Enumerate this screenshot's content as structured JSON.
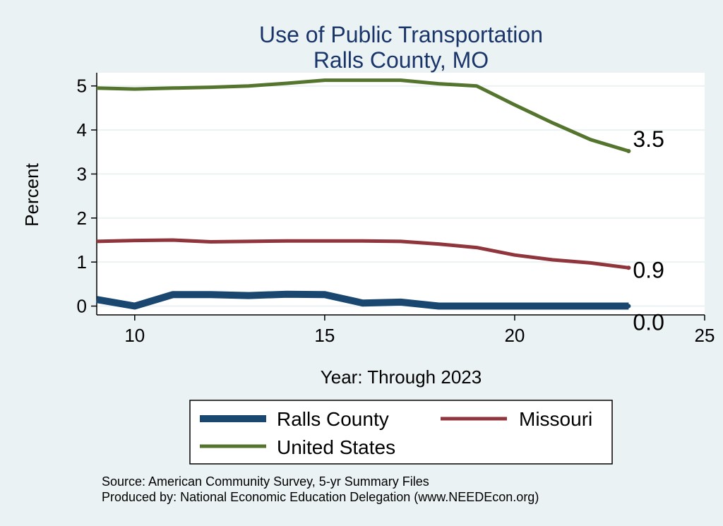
{
  "chart_data": {
    "type": "line",
    "title": [
      "Use of Public Transportation",
      "Ralls County, MO"
    ],
    "xlabel": "Year: Through 2023",
    "ylabel": "Percent",
    "xlim": [
      9,
      25
    ],
    "ylim": [
      -0.2,
      5.3
    ],
    "xticks": [
      10,
      15,
      20,
      25
    ],
    "yticks": [
      0,
      1,
      2,
      3,
      4,
      5
    ],
    "grid": true,
    "legend_position": "bottom",
    "series": [
      {
        "name": "Ralls County",
        "color": "#1a476f",
        "x": [
          9,
          10,
          11,
          12,
          13,
          14,
          15,
          16,
          17,
          18,
          19,
          20,
          21,
          22,
          23
        ],
        "y": [
          0.15,
          0.0,
          0.26,
          0.26,
          0.24,
          0.27,
          0.26,
          0.07,
          0.09,
          0.0,
          0.0,
          0.0,
          0.0,
          0.0,
          0.0
        ],
        "end_label": "0.0"
      },
      {
        "name": "Missouri",
        "color": "#90353b",
        "x": [
          9,
          10,
          11,
          12,
          13,
          14,
          15,
          16,
          17,
          18,
          19,
          20,
          21,
          22,
          23
        ],
        "y": [
          1.47,
          1.49,
          1.5,
          1.46,
          1.47,
          1.48,
          1.48,
          1.48,
          1.47,
          1.41,
          1.33,
          1.16,
          1.05,
          0.98,
          0.87
        ],
        "end_label": "0.9"
      },
      {
        "name": "United States",
        "color": "#55752f",
        "x": [
          9,
          10,
          11,
          12,
          13,
          14,
          15,
          16,
          17,
          18,
          19,
          20,
          21,
          22,
          23
        ],
        "y": [
          4.95,
          4.93,
          4.95,
          4.97,
          5.0,
          5.06,
          5.13,
          5.13,
          5.13,
          5.05,
          5.0,
          4.57,
          4.16,
          3.78,
          3.52
        ],
        "end_label": "3.5"
      }
    ],
    "notes": [
      "Source: American Community Survey, 5-yr Summary Files",
      "Produced by: National Economic Education Delegation (www.NEEDEcon.org)"
    ]
  }
}
